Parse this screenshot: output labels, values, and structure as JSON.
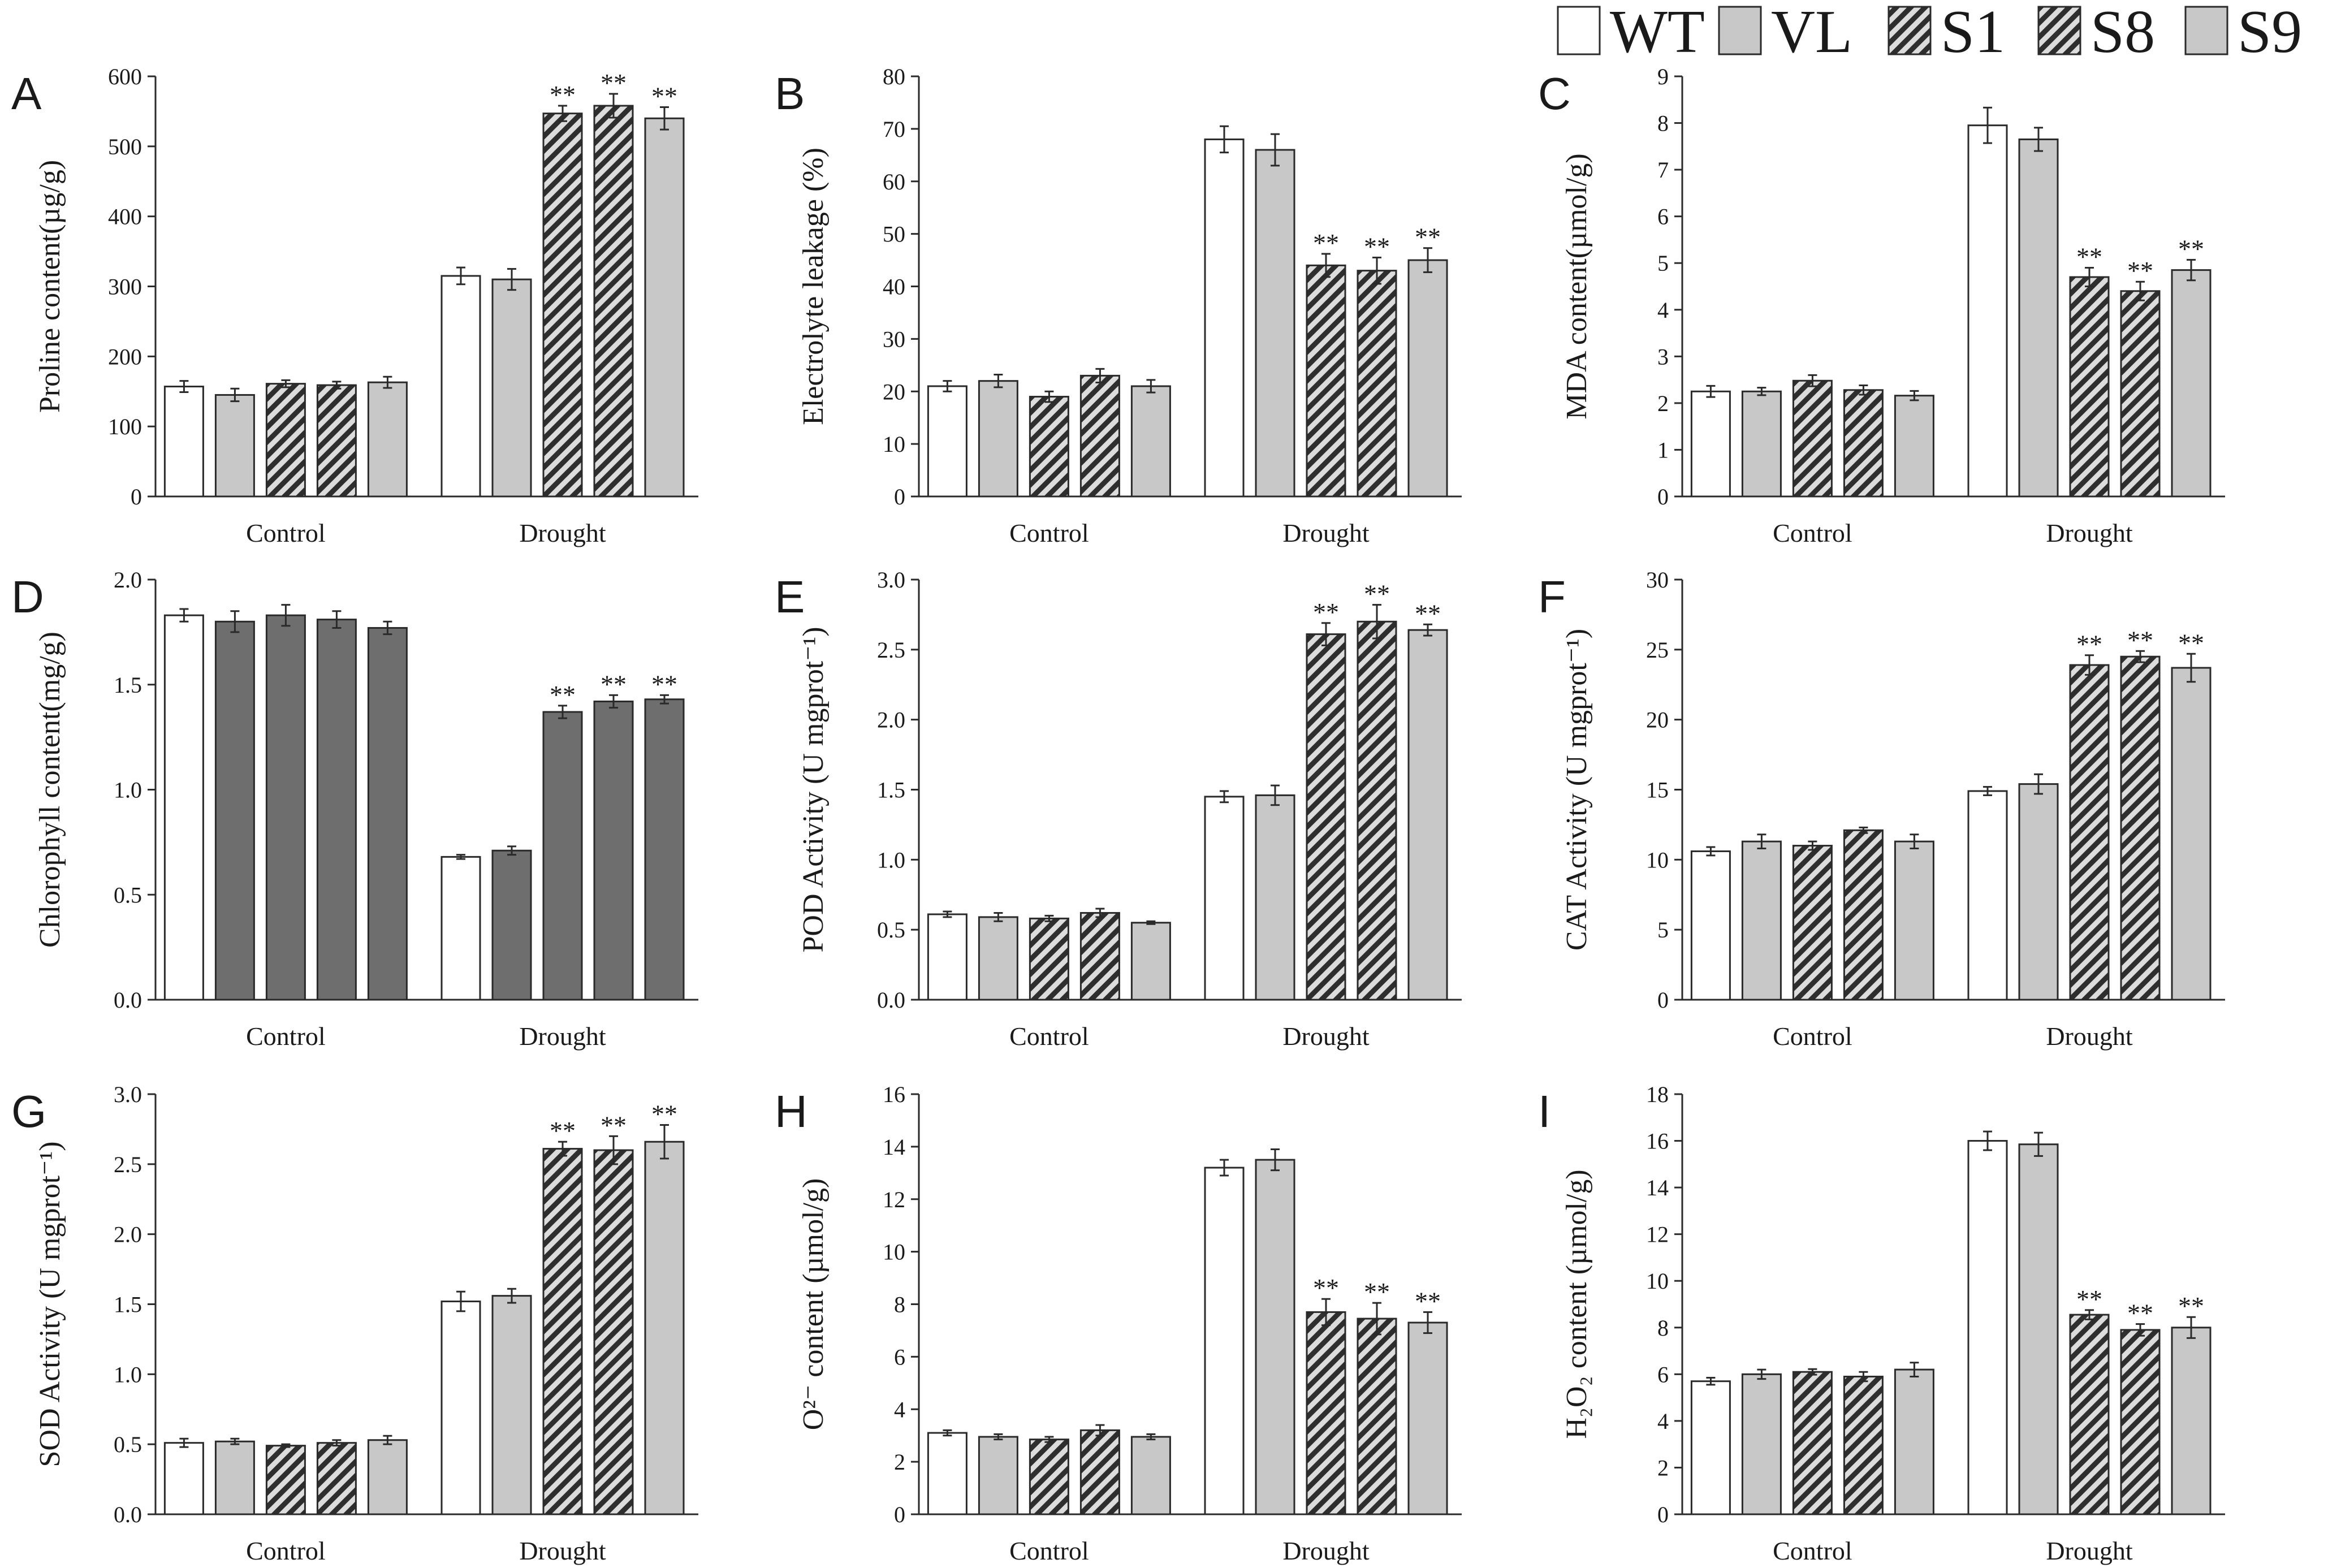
{
  "figure": {
    "groups": [
      "Control",
      "Drought"
    ],
    "legend": {
      "entries": [
        {
          "label": "WT",
          "pattern": "white"
        },
        {
          "label": "VL",
          "pattern": "light"
        },
        {
          "label": "S1",
          "pattern": "hatch-dark"
        },
        {
          "label": "S8",
          "pattern": "hatch-dark"
        },
        {
          "label": "S9",
          "pattern": "light"
        }
      ]
    },
    "colors": {
      "bar_white": "#ffffff",
      "bar_light": "#c8c8c8",
      "bar_dark": "#6e6e6e",
      "hatch_bg": "#dcdcdc",
      "hatch_line": "#2e2e2e",
      "stroke": "#2a2a2a"
    }
  },
  "chart_data": [
    {
      "panel": "A",
      "type": "bar",
      "ylabel": "Proline content(µg/g)",
      "ylim": [
        0,
        600
      ],
      "yticks": [
        0,
        100,
        200,
        300,
        400,
        500,
        600
      ],
      "categories": [
        "Control",
        "Drought"
      ],
      "series": [
        {
          "name": "WT",
          "values": [
            157,
            315
          ],
          "errors": [
            8,
            12
          ],
          "sig": [
            "",
            ""
          ]
        },
        {
          "name": "VL",
          "values": [
            145,
            310
          ],
          "errors": [
            9,
            15
          ],
          "sig": [
            "",
            ""
          ]
        },
        {
          "name": "S1",
          "values": [
            161,
            547
          ],
          "errors": [
            5,
            11
          ],
          "sig": [
            "",
            "**"
          ]
        },
        {
          "name": "S8",
          "values": [
            159,
            558
          ],
          "errors": [
            5,
            17
          ],
          "sig": [
            "",
            "**"
          ]
        },
        {
          "name": "S9",
          "values": [
            163,
            540
          ],
          "errors": [
            8,
            16
          ],
          "sig": [
            "",
            "**"
          ]
        }
      ]
    },
    {
      "panel": "B",
      "type": "bar",
      "ylabel": "Electrolyte leakage (%)",
      "ylim": [
        0,
        80
      ],
      "yticks": [
        0,
        10,
        20,
        30,
        40,
        50,
        60,
        70,
        80
      ],
      "categories": [
        "Control",
        "Drought"
      ],
      "series": [
        {
          "name": "WT",
          "values": [
            21,
            68
          ],
          "errors": [
            1.0,
            2.5
          ],
          "sig": [
            "",
            ""
          ]
        },
        {
          "name": "VL",
          "values": [
            22,
            66
          ],
          "errors": [
            1.2,
            3.0
          ],
          "sig": [
            "",
            ""
          ]
        },
        {
          "name": "S1",
          "values": [
            19,
            44
          ],
          "errors": [
            1.0,
            2.2
          ],
          "sig": [
            "",
            "**"
          ]
        },
        {
          "name": "S8",
          "values": [
            23,
            43
          ],
          "errors": [
            1.3,
            2.5
          ],
          "sig": [
            "",
            "**"
          ]
        },
        {
          "name": "S9",
          "values": [
            21,
            45
          ],
          "errors": [
            1.2,
            2.3
          ],
          "sig": [
            "",
            "**"
          ]
        }
      ]
    },
    {
      "panel": "C",
      "type": "bar",
      "ylabel": "MDA content(µmol/g)",
      "ylim": [
        0,
        9
      ],
      "yticks": [
        0,
        1,
        2,
        3,
        4,
        5,
        6,
        7,
        8,
        9
      ],
      "categories": [
        "Control",
        "Drought"
      ],
      "series": [
        {
          "name": "WT",
          "values": [
            2.25,
            7.95
          ],
          "errors": [
            0.12,
            0.38
          ],
          "sig": [
            "",
            ""
          ]
        },
        {
          "name": "VL",
          "values": [
            2.25,
            7.65
          ],
          "errors": [
            0.08,
            0.25
          ],
          "sig": [
            "",
            ""
          ]
        },
        {
          "name": "S1",
          "values": [
            2.48,
            4.7
          ],
          "errors": [
            0.12,
            0.2
          ],
          "sig": [
            "",
            "**"
          ]
        },
        {
          "name": "S8",
          "values": [
            2.28,
            4.4
          ],
          "errors": [
            0.1,
            0.2
          ],
          "sig": [
            "",
            "**"
          ]
        },
        {
          "name": "S9",
          "values": [
            2.16,
            4.85
          ],
          "errors": [
            0.1,
            0.22
          ],
          "sig": [
            "",
            "**"
          ]
        }
      ]
    },
    {
      "panel": "D",
      "type": "bar",
      "ylabel": "Chlorophyll content(mg/g)",
      "ylim": [
        0,
        2.0
      ],
      "yticks": [
        "0.0",
        "0.5",
        "1.0",
        "1.5",
        "2.0"
      ],
      "categories": [
        "Control",
        "Drought"
      ],
      "series": [
        {
          "name": "WT",
          "values": [
            1.83,
            0.68
          ],
          "errors": [
            0.03,
            0.01
          ],
          "sig": [
            "",
            ""
          ]
        },
        {
          "name": "VL",
          "values": [
            1.8,
            0.71
          ],
          "errors": [
            0.05,
            0.02
          ],
          "sig": [
            "",
            ""
          ]
        },
        {
          "name": "S1",
          "values": [
            1.83,
            1.37
          ],
          "errors": [
            0.05,
            0.03
          ],
          "sig": [
            "",
            "**"
          ]
        },
        {
          "name": "S8",
          "values": [
            1.81,
            1.42
          ],
          "errors": [
            0.04,
            0.03
          ],
          "sig": [
            "",
            "**"
          ]
        },
        {
          "name": "S9",
          "values": [
            1.77,
            1.43
          ],
          "errors": [
            0.03,
            0.02
          ],
          "sig": [
            "",
            "**"
          ]
        }
      ]
    },
    {
      "panel": "E",
      "type": "bar",
      "ylabel": "POD Activity (U mgprot⁻¹)",
      "ylim": [
        0,
        3.0
      ],
      "yticks": [
        "0.0",
        "0.5",
        "1.0",
        "1.5",
        "2.0",
        "2.5",
        "3.0"
      ],
      "categories": [
        "Control",
        "Drought"
      ],
      "series": [
        {
          "name": "WT",
          "values": [
            0.61,
            1.45
          ],
          "errors": [
            0.02,
            0.04
          ],
          "sig": [
            "",
            ""
          ]
        },
        {
          "name": "VL",
          "values": [
            0.59,
            1.46
          ],
          "errors": [
            0.03,
            0.07
          ],
          "sig": [
            "",
            ""
          ]
        },
        {
          "name": "S1",
          "values": [
            0.58,
            2.61
          ],
          "errors": [
            0.02,
            0.08
          ],
          "sig": [
            "",
            "**"
          ]
        },
        {
          "name": "S8",
          "values": [
            0.62,
            2.7
          ],
          "errors": [
            0.03,
            0.12
          ],
          "sig": [
            "",
            "**"
          ]
        },
        {
          "name": "S9",
          "values": [
            0.55,
            2.64
          ],
          "errors": [
            0.01,
            0.04
          ],
          "sig": [
            "",
            "**"
          ]
        }
      ]
    },
    {
      "panel": "F",
      "type": "bar",
      "ylabel": "CAT Activity (U mgprot⁻¹)",
      "ylim": [
        0,
        30
      ],
      "yticks": [
        0,
        5,
        10,
        15,
        20,
        25,
        30
      ],
      "categories": [
        "Control",
        "Drought"
      ],
      "series": [
        {
          "name": "WT",
          "values": [
            10.6,
            14.9
          ],
          "errors": [
            0.3,
            0.3
          ],
          "sig": [
            "",
            ""
          ]
        },
        {
          "name": "VL",
          "values": [
            11.3,
            15.4
          ],
          "errors": [
            0.5,
            0.7
          ],
          "sig": [
            "",
            ""
          ]
        },
        {
          "name": "S1",
          "values": [
            11.0,
            23.9
          ],
          "errors": [
            0.3,
            0.7
          ],
          "sig": [
            "",
            "**"
          ]
        },
        {
          "name": "S8",
          "values": [
            12.1,
            24.5
          ],
          "errors": [
            0.2,
            0.4
          ],
          "sig": [
            "",
            "**"
          ]
        },
        {
          "name": "S9",
          "values": [
            11.3,
            23.7
          ],
          "errors": [
            0.5,
            1.0
          ],
          "sig": [
            "",
            "**"
          ]
        }
      ]
    },
    {
      "panel": "G",
      "type": "bar",
      "ylabel": "SOD Activity (U mgprot⁻¹)",
      "ylim": [
        0,
        3.0
      ],
      "yticks": [
        "0.0",
        "0.5",
        "1.0",
        "1.5",
        "2.0",
        "2.5",
        "3.0"
      ],
      "categories": [
        "Control",
        "Drought"
      ],
      "series": [
        {
          "name": "WT",
          "values": [
            0.51,
            1.52
          ],
          "errors": [
            0.03,
            0.07
          ],
          "sig": [
            "",
            ""
          ]
        },
        {
          "name": "VL",
          "values": [
            0.52,
            1.56
          ],
          "errors": [
            0.02,
            0.05
          ],
          "sig": [
            "",
            ""
          ]
        },
        {
          "name": "S1",
          "values": [
            0.49,
            2.61
          ],
          "errors": [
            0.01,
            0.05
          ],
          "sig": [
            "",
            "**"
          ]
        },
        {
          "name": "S8",
          "values": [
            0.51,
            2.6
          ],
          "errors": [
            0.02,
            0.1
          ],
          "sig": [
            "",
            "**"
          ]
        },
        {
          "name": "S9",
          "values": [
            0.53,
            2.66
          ],
          "errors": [
            0.03,
            0.12
          ],
          "sig": [
            "",
            "**"
          ]
        }
      ]
    },
    {
      "panel": "H",
      "type": "bar",
      "ylabel": "O²⁻ content (µmol/g)",
      "ylim": [
        0,
        16
      ],
      "yticks": [
        0,
        2,
        4,
        6,
        8,
        10,
        12,
        14,
        16
      ],
      "categories": [
        "Control",
        "Drought"
      ],
      "series": [
        {
          "name": "WT",
          "values": [
            3.1,
            13.2
          ],
          "errors": [
            0.1,
            0.3
          ],
          "sig": [
            "",
            ""
          ]
        },
        {
          "name": "VL",
          "values": [
            2.95,
            13.5
          ],
          "errors": [
            0.1,
            0.4
          ],
          "sig": [
            "",
            ""
          ]
        },
        {
          "name": "S1",
          "values": [
            2.85,
            7.7
          ],
          "errors": [
            0.1,
            0.5
          ],
          "sig": [
            "",
            "**"
          ]
        },
        {
          "name": "S8",
          "values": [
            3.2,
            7.45
          ],
          "errors": [
            0.2,
            0.6
          ],
          "sig": [
            "",
            "**"
          ]
        },
        {
          "name": "S9",
          "values": [
            2.95,
            7.3
          ],
          "errors": [
            0.1,
            0.4
          ],
          "sig": [
            "",
            "**"
          ]
        }
      ]
    },
    {
      "panel": "I",
      "type": "bar",
      "ylabel": "H₂O₂ content (µmol/g)",
      "ylim": [
        0,
        18
      ],
      "yticks": [
        0,
        2,
        4,
        6,
        8,
        10,
        12,
        14,
        16,
        18
      ],
      "categories": [
        "Control",
        "Drought"
      ],
      "series": [
        {
          "name": "WT",
          "values": [
            5.7,
            16.0
          ],
          "errors": [
            0.15,
            0.4
          ],
          "sig": [
            "",
            ""
          ]
        },
        {
          "name": "VL",
          "values": [
            6.0,
            15.85
          ],
          "errors": [
            0.2,
            0.5
          ],
          "sig": [
            "",
            ""
          ]
        },
        {
          "name": "S1",
          "values": [
            6.1,
            8.55
          ],
          "errors": [
            0.12,
            0.2
          ],
          "sig": [
            "",
            "**"
          ]
        },
        {
          "name": "S8",
          "values": [
            5.9,
            7.9
          ],
          "errors": [
            0.2,
            0.25
          ],
          "sig": [
            "",
            "**"
          ]
        },
        {
          "name": "S9",
          "values": [
            6.2,
            8.0
          ],
          "errors": [
            0.3,
            0.45
          ],
          "sig": [
            "",
            "**"
          ]
        }
      ]
    }
  ]
}
